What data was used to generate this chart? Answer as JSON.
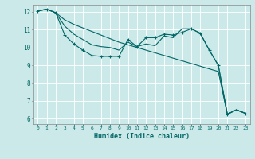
{
  "title": "",
  "xlabel": "Humidex (Indice chaleur)",
  "ylabel": "",
  "bg_color": "#cce9e9",
  "grid_color": "#ffffff",
  "line_color": "#006666",
  "xlim": [
    -0.5,
    23.5
  ],
  "ylim": [
    5.7,
    12.4
  ],
  "xticks": [
    0,
    1,
    2,
    3,
    4,
    5,
    6,
    7,
    8,
    9,
    10,
    11,
    12,
    13,
    14,
    15,
    16,
    17,
    18,
    19,
    20,
    21,
    22,
    23
  ],
  "yticks": [
    6,
    7,
    8,
    9,
    10,
    11,
    12
  ],
  "series1": [
    [
      0,
      12.05
    ],
    [
      1,
      12.15
    ],
    [
      2,
      11.95
    ],
    [
      3,
      10.7
    ],
    [
      4,
      10.2
    ],
    [
      5,
      9.85
    ],
    [
      6,
      9.55
    ],
    [
      7,
      9.5
    ],
    [
      8,
      9.5
    ],
    [
      9,
      9.5
    ],
    [
      10,
      10.45
    ],
    [
      11,
      10.05
    ],
    [
      12,
      10.55
    ],
    [
      13,
      10.55
    ],
    [
      14,
      10.75
    ],
    [
      15,
      10.7
    ],
    [
      16,
      10.85
    ],
    [
      17,
      11.05
    ],
    [
      18,
      10.8
    ],
    [
      19,
      9.85
    ],
    [
      20,
      9.0
    ],
    [
      21,
      6.25
    ],
    [
      22,
      6.5
    ],
    [
      23,
      6.3
    ]
  ],
  "series2": [
    [
      0,
      12.05
    ],
    [
      1,
      12.15
    ],
    [
      2,
      11.95
    ],
    [
      3,
      11.55
    ],
    [
      4,
      11.3
    ],
    [
      5,
      11.1
    ],
    [
      6,
      10.9
    ],
    [
      7,
      10.7
    ],
    [
      8,
      10.5
    ],
    [
      9,
      10.3
    ],
    [
      10,
      10.15
    ],
    [
      11,
      10.0
    ],
    [
      12,
      9.85
    ],
    [
      13,
      9.7
    ],
    [
      14,
      9.55
    ],
    [
      15,
      9.4
    ],
    [
      16,
      9.25
    ],
    [
      17,
      9.1
    ],
    [
      18,
      8.95
    ],
    [
      19,
      8.8
    ],
    [
      20,
      8.65
    ],
    [
      21,
      6.25
    ],
    [
      22,
      6.5
    ],
    [
      23,
      6.3
    ]
  ],
  "series3": [
    [
      0,
      12.05
    ],
    [
      1,
      12.15
    ],
    [
      2,
      11.95
    ],
    [
      3,
      11.2
    ],
    [
      4,
      10.75
    ],
    [
      5,
      10.45
    ],
    [
      6,
      10.15
    ],
    [
      7,
      10.05
    ],
    [
      8,
      10.0
    ],
    [
      9,
      9.85
    ],
    [
      10,
      10.3
    ],
    [
      11,
      10.05
    ],
    [
      12,
      10.2
    ],
    [
      13,
      10.1
    ],
    [
      14,
      10.65
    ],
    [
      15,
      10.55
    ],
    [
      16,
      11.05
    ],
    [
      17,
      11.05
    ],
    [
      18,
      10.8
    ],
    [
      19,
      9.85
    ],
    [
      20,
      9.0
    ],
    [
      21,
      6.25
    ],
    [
      22,
      6.5
    ],
    [
      23,
      6.3
    ]
  ]
}
